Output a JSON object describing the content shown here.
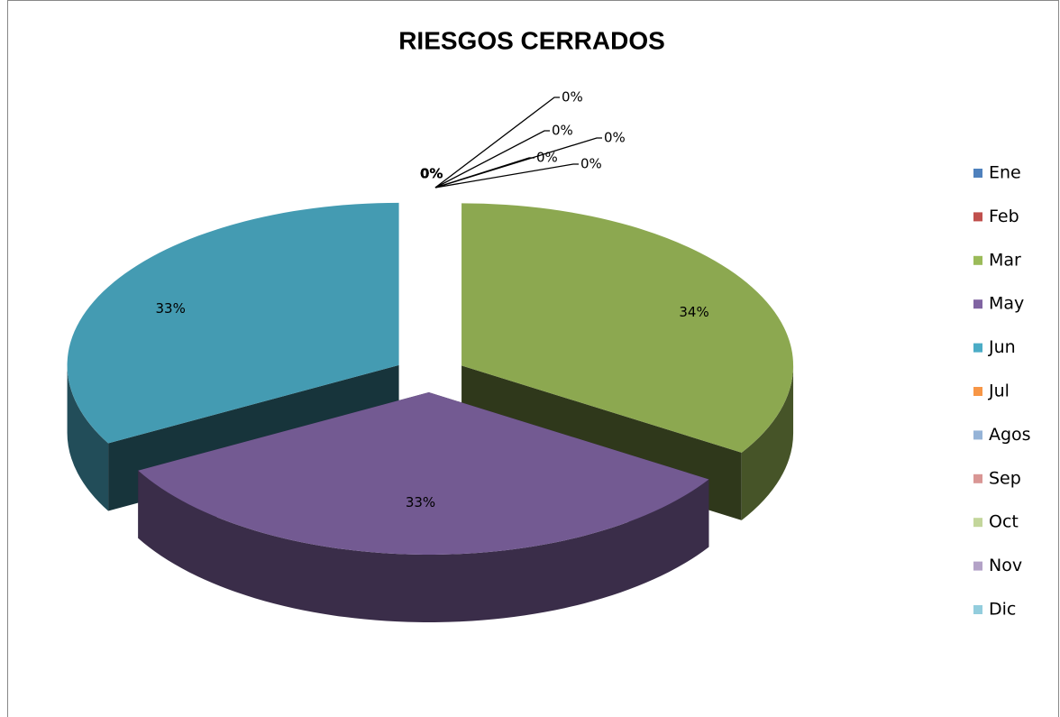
{
  "chart_data": {
    "type": "pie3d",
    "title": "RIESGOS CERRADOS",
    "categories": [
      "Ene",
      "Feb",
      "Mar",
      "May",
      "Jun",
      "Jul",
      "Agos",
      "Sep",
      "Oct",
      "Nov",
      "Dic"
    ],
    "values": [
      0,
      0,
      34,
      33,
      33,
      0,
      0,
      0,
      0,
      0,
      0
    ],
    "value_labels": [
      "0%",
      "0%",
      "34%",
      "33%",
      "33%",
      "0%",
      "0%",
      "0%",
      "0%",
      "0%",
      "0%"
    ],
    "colors": [
      "#4F81BD",
      "#C0504D",
      "#9BBB59",
      "#8064A2",
      "#4BACC6",
      "#F79646",
      "#95B3D7",
      "#D99694",
      "#C3D69B",
      "#B3A2C7",
      "#93CDDD"
    ],
    "legend": "right"
  }
}
